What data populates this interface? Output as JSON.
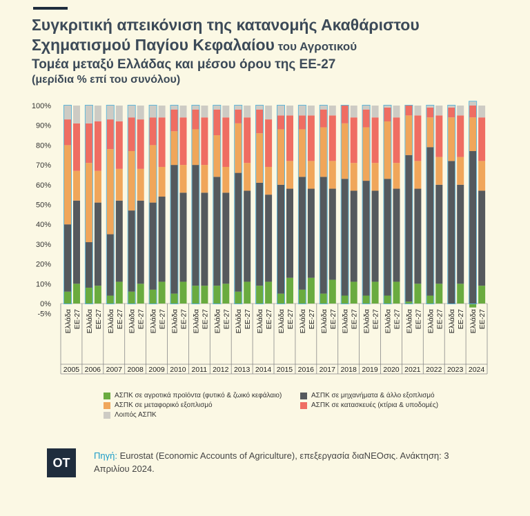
{
  "header": {
    "title_line1": "Συγκριτική απεικόνιση της κατανομής Ακαθάριστου",
    "title_line2_bold": "Σχηματισμού Παγίου Κεφαλαίου",
    "title_line2_small": " του Αγροτικού",
    "subtitle": "Τομέα μεταξύ Ελλάδας και μέσου όρου της ΕΕ-27",
    "unit": "(μερίδια % επί του συνόλου)"
  },
  "chart_data": {
    "type": "bar",
    "stacked": true,
    "years": [
      "2005",
      "2006",
      "2007",
      "2008",
      "2009",
      "2010",
      "2011",
      "2012",
      "2013",
      "2014",
      "2015",
      "2016",
      "2017",
      "2018",
      "2019",
      "2020",
      "2021",
      "2022",
      "2023",
      "2024"
    ],
    "bar_labels": [
      "Ελλάδα",
      "ΕΕ-27"
    ],
    "y_ticks": [
      "100%",
      "90%",
      "80%",
      "70%",
      "60%",
      "50%",
      "40%",
      "30%",
      "20%",
      "10%",
      "0%",
      "-5%"
    ],
    "ylim": [
      -5,
      100
    ],
    "series": [
      {
        "name": "ΑΣΠΚ σε αγροτικά προϊόντα (φυτικό & ζωικό κεφάλαιο)",
        "color": "#6aab3f",
        "greece": [
          6,
          8,
          4,
          6,
          7,
          5,
          9,
          9,
          6,
          9,
          5,
          7,
          5,
          4,
          4,
          4,
          1,
          4,
          0,
          -2
        ],
        "eu": [
          10,
          9,
          11,
          10,
          11,
          11,
          9,
          10,
          11,
          11,
          13,
          13,
          12,
          11,
          11,
          11,
          10,
          10,
          10,
          9
        ]
      },
      {
        "name": "ΑΣΠΚ σε μηχανήματα & άλλο εξοπλισμό",
        "color": "#55595d",
        "greece": [
          34,
          23,
          31,
          41,
          44,
          65,
          61,
          55,
          60,
          52,
          55,
          57,
          59,
          59,
          58,
          59,
          74,
          75,
          72,
          77
        ],
        "eu": [
          42,
          42,
          41,
          42,
          43,
          45,
          47,
          46,
          46,
          44,
          45,
          45,
          46,
          46,
          46,
          47,
          48,
          50,
          50,
          48
        ]
      },
      {
        "name": "ΑΣΠΚ σε μεταφορικό εξοπλισμό",
        "color": "#f0a65a",
        "greece": [
          40,
          40,
          43,
          30,
          29,
          17,
          18,
          21,
          25,
          25,
          28,
          24,
          25,
          28,
          27,
          29,
          20,
          15,
          22,
          17
        ],
        "eu": [
          15,
          16,
          16,
          16,
          15,
          14,
          14,
          13,
          14,
          14,
          14,
          14,
          14,
          14,
          14,
          13,
          14,
          14,
          14,
          15
        ]
      },
      {
        "name": "ΑΣΠΚ σε κατασκευές (κτίρια & υποδομές)",
        "color": "#ef6d62",
        "greece": [
          13,
          20,
          15,
          17,
          14,
          11,
          10,
          13,
          7,
          12,
          7,
          7,
          9,
          9,
          9,
          7,
          5,
          5,
          5,
          6
        ],
        "eu": [
          24,
          25,
          24,
          25,
          25,
          24,
          24,
          25,
          23,
          24,
          23,
          23,
          23,
          23,
          23,
          23,
          23,
          21,
          21,
          22
        ]
      },
      {
        "name": "Λοιπός ΑΣΠΚ",
        "color": "#cdcbc4",
        "greece": [
          7,
          9,
          7,
          6,
          6,
          2,
          2,
          2,
          2,
          2,
          5,
          5,
          2,
          0,
          2,
          1,
          0,
          1,
          1,
          2
        ],
        "eu": [
          9,
          8,
          8,
          7,
          6,
          6,
          6,
          6,
          6,
          7,
          5,
          5,
          5,
          6,
          6,
          6,
          5,
          5,
          5,
          6
        ]
      }
    ]
  },
  "source": {
    "label": "Πηγή:",
    "text": " Eurostat (Economic Accounts of Agriculture), επεξεργασία διαΝΕΟσις. Ανάκτηση: 3 Απριλίου 2024."
  },
  "logo": "OT"
}
